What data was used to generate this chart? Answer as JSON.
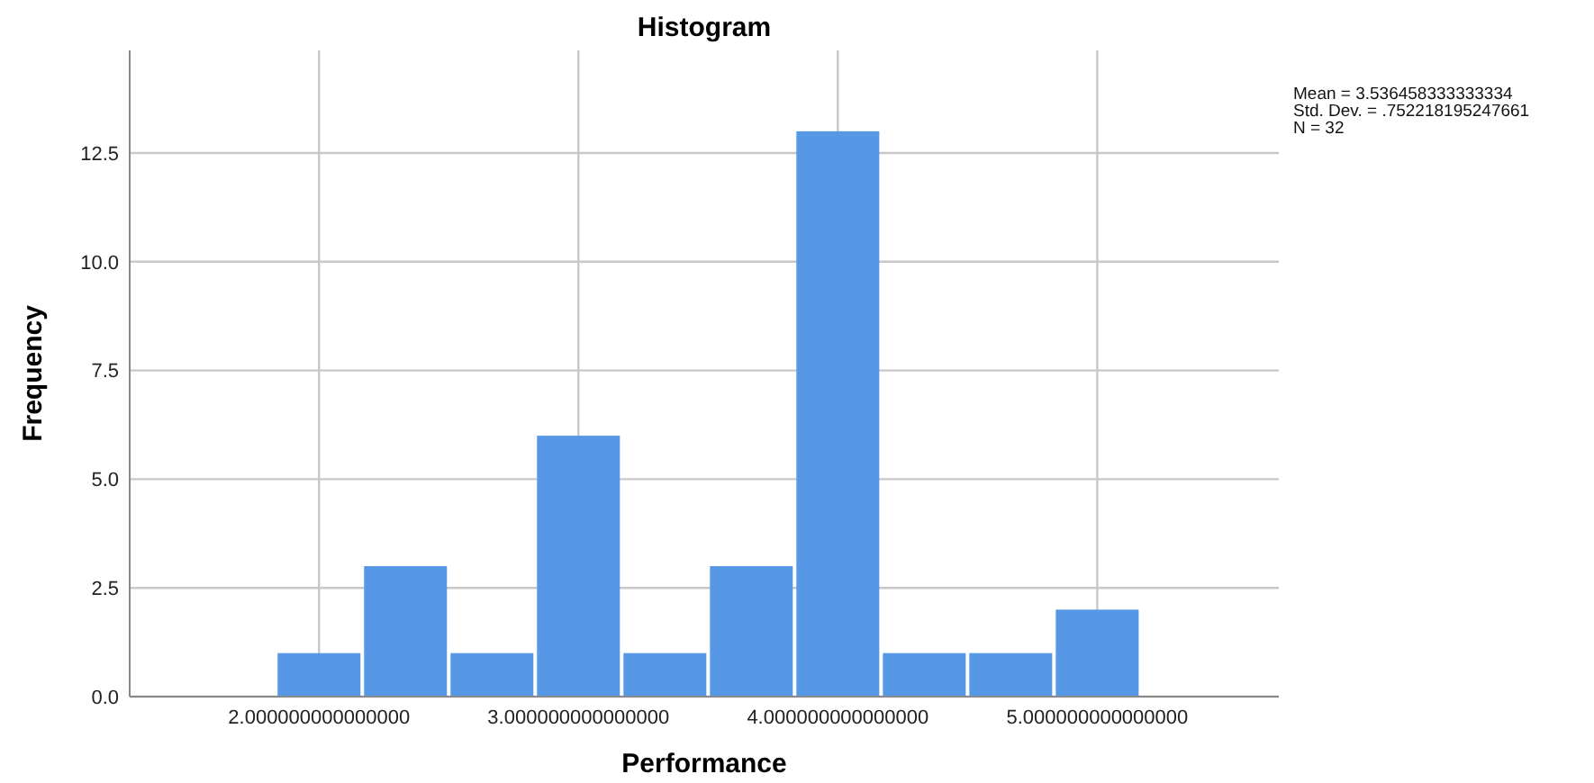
{
  "chart_data": {
    "type": "histogram",
    "title": "Histogram",
    "xlabel": "Performance",
    "ylabel": "Frequency",
    "bins": [
      1.8333,
      2.1667,
      2.5,
      2.8333,
      3.1667,
      3.5,
      3.8333,
      4.1667,
      4.5,
      4.8333,
      5.1667
    ],
    "values": [
      1,
      3,
      1,
      6,
      1,
      3,
      13,
      1,
      1,
      2
    ],
    "color": "#5698e5",
    "xlim": [
      1.27,
      5.7
    ],
    "ylim": [
      0,
      14.86
    ],
    "xticks": [
      {
        "value": 2,
        "label": "2.000000000000000"
      },
      {
        "value": 3,
        "label": "3.000000000000000"
      },
      {
        "value": 4,
        "label": "4.000000000000000"
      },
      {
        "value": 5,
        "label": "5.000000000000000"
      }
    ],
    "yticks": [
      {
        "value": 0,
        "label": "0.0"
      },
      {
        "value": 2.5,
        "label": "2.5"
      },
      {
        "value": 5,
        "label": "5.0"
      },
      {
        "value": 7.5,
        "label": "7.5"
      },
      {
        "value": 10,
        "label": "10.0"
      },
      {
        "value": 12.5,
        "label": "12.5"
      }
    ],
    "grid": true,
    "annotations": [
      "Mean = 3.536458333333334",
      "Std. Dev. = .752218195247661",
      "N = 32"
    ]
  }
}
